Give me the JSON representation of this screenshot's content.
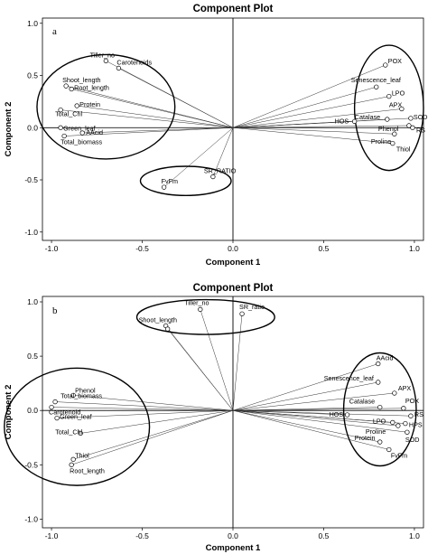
{
  "chart_data": [
    {
      "type": "scatter",
      "panel_label": "a",
      "title": "Component Plot",
      "xlabel": "Component 1",
      "ylabel": "Component 2",
      "xlim": [
        -1.05,
        1.05
      ],
      "ylim": [
        -1.08,
        1.05
      ],
      "xticks": [
        "-1.0",
        "-0.5",
        "0.0",
        "0.5",
        "1.0"
      ],
      "yticks": [
        "1.0",
        "0.5",
        "0.0",
        "-0.5",
        "-1.0"
      ],
      "points": [
        {
          "label": "Tiller_no",
          "x": -0.7,
          "y": 0.64
        },
        {
          "label": "Carotenoids",
          "x": -0.63,
          "y": 0.57
        },
        {
          "label": "Shoot_length",
          "x": -0.92,
          "y": 0.4
        },
        {
          "label": "Root_length",
          "x": -0.89,
          "y": 0.37
        },
        {
          "label": "Protein",
          "x": -0.86,
          "y": 0.21
        },
        {
          "label": "Total_Chl",
          "x": -0.95,
          "y": 0.17
        },
        {
          "label": "Green_leaf",
          "x": -0.95,
          "y": 0.0
        },
        {
          "label": "AAcid",
          "x": -0.83,
          "y": -0.05
        },
        {
          "label": "Total_biomass",
          "x": -0.93,
          "y": -0.08
        },
        {
          "label": "SR_RATIO",
          "x": -0.11,
          "y": -0.47
        },
        {
          "label": "FvFm",
          "x": -0.38,
          "y": -0.57
        },
        {
          "label": "POX",
          "x": 0.84,
          "y": 0.6
        },
        {
          "label": "Senescence_leaf",
          "x": 0.79,
          "y": 0.39
        },
        {
          "label": "LPO",
          "x": 0.86,
          "y": 0.3
        },
        {
          "label": "APX",
          "x": 0.93,
          "y": 0.18
        },
        {
          "label": "HOS",
          "x": 0.67,
          "y": 0.06
        },
        {
          "label": "Catalase",
          "x": 0.85,
          "y": 0.08
        },
        {
          "label": "SOD",
          "x": 0.98,
          "y": 0.09
        },
        {
          "label": "Phenol",
          "x": 0.97,
          "y": 0.02
        },
        {
          "label": "RS",
          "x": 0.99,
          "y": 0.0
        },
        {
          "label": "Proline",
          "x": 0.89,
          "y": -0.06
        },
        {
          "label": "Thiol",
          "x": 0.88,
          "y": -0.15
        }
      ],
      "ellipses": [
        {
          "cx": -0.7,
          "cy": 0.2,
          "rx": 0.38,
          "ry": 0.5
        },
        {
          "cx": -0.26,
          "cy": -0.51,
          "rx": 0.25,
          "ry": 0.14
        },
        {
          "cx": 0.86,
          "cy": 0.19,
          "rx": 0.19,
          "ry": 0.6
        }
      ]
    },
    {
      "type": "scatter",
      "panel_label": "b",
      "title": "Component Plot",
      "xlabel": "Component 1",
      "ylabel": "Component 2",
      "xlim": [
        -1.05,
        1.05
      ],
      "ylim": [
        -1.08,
        1.05
      ],
      "xticks": [
        "-1.0",
        "-0.5",
        "0.0",
        "0.5",
        "1.0"
      ],
      "yticks": [
        "1.0",
        "0.5",
        "0.0",
        "-0.5",
        "-1.0"
      ],
      "points": [
        {
          "label": "Tiller_no",
          "x": -0.18,
          "y": 0.93
        },
        {
          "label": "SR_ratio",
          "x": 0.05,
          "y": 0.89
        },
        {
          "label": "Shoot_length",
          "x": -0.37,
          "y": 0.78
        },
        {
          "label": "",
          "x": -0.36,
          "y": 0.75
        },
        {
          "label": "Phenol",
          "x": -0.88,
          "y": 0.14
        },
        {
          "label": "Total_biomass",
          "x": -0.98,
          "y": 0.08
        },
        {
          "label": "Carotenoid",
          "x": -1.0,
          "y": 0.03
        },
        {
          "label": "Green_leaf",
          "x": -0.97,
          "y": -0.07
        },
        {
          "label": "Total_Chl",
          "x": -0.84,
          "y": -0.21
        },
        {
          "label": "Thiol",
          "x": -0.88,
          "y": -0.45
        },
        {
          "label": "Root_length",
          "x": -0.89,
          "y": -0.5
        },
        {
          "label": "AAcid",
          "x": 0.8,
          "y": 0.43
        },
        {
          "label": "Senescence_leaf",
          "x": 0.8,
          "y": 0.26
        },
        {
          "label": "APX",
          "x": 0.89,
          "y": 0.16
        },
        {
          "label": "Catalase",
          "x": 0.81,
          "y": 0.03
        },
        {
          "label": "POX",
          "x": 0.94,
          "y": 0.02
        },
        {
          "label": "HOS",
          "x": 0.63,
          "y": -0.04
        },
        {
          "label": "RS",
          "x": 0.98,
          "y": -0.05
        },
        {
          "label": "LPO",
          "x": 0.88,
          "y": -0.11
        },
        {
          "label": "HPS",
          "x": 0.95,
          "y": -0.12
        },
        {
          "label": "SOD",
          "x": 0.96,
          "y": -0.2
        },
        {
          "label": "Proline",
          "x": 0.91,
          "y": -0.14
        },
        {
          "label": "Protein",
          "x": 0.81,
          "y": -0.29
        },
        {
          "label": "FvFm",
          "x": 0.86,
          "y": -0.36
        }
      ],
      "ellipses": [
        {
          "cx": -0.86,
          "cy": -0.15,
          "rx": 0.4,
          "ry": 0.54
        },
        {
          "cx": -0.15,
          "cy": 0.86,
          "rx": 0.38,
          "ry": 0.16
        },
        {
          "cx": 0.81,
          "cy": 0.01,
          "rx": 0.2,
          "ry": 0.52
        }
      ]
    }
  ]
}
